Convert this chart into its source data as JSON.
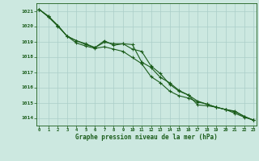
{
  "title": "Graphe pression niveau de la mer (hPa)",
  "xlabel_hours": [
    0,
    1,
    2,
    3,
    4,
    5,
    6,
    7,
    8,
    9,
    10,
    11,
    12,
    13,
    14,
    15,
    16,
    17,
    18,
    19,
    20,
    21,
    22,
    23
  ],
  "ylim": [
    1013.5,
    1021.5
  ],
  "yticks": [
    1014,
    1015,
    1016,
    1017,
    1018,
    1019,
    1020,
    1021
  ],
  "bg_color": "#cce8e0",
  "grid_color": "#aacec8",
  "line_color": "#1a5c1a",
  "line1": [
    1021.1,
    1020.65,
    1020.05,
    1019.35,
    1019.05,
    1018.8,
    1018.6,
    1018.95,
    1018.85,
    1018.85,
    1018.8,
    1017.65,
    1017.3,
    1016.65,
    1016.3,
    1015.8,
    1015.5,
    1014.85,
    1014.8,
    1014.7,
    1014.55,
    1014.3,
    1014.05,
    1013.85
  ],
  "line2": [
    1021.1,
    1020.65,
    1020.05,
    1019.35,
    1019.05,
    1018.85,
    1018.6,
    1019.05,
    1018.75,
    1018.85,
    1018.5,
    1018.35,
    1017.4,
    1016.9,
    1016.2,
    1015.75,
    1015.5,
    1015.1,
    1014.9,
    1014.7,
    1014.55,
    1014.45,
    1014.1,
    1013.85
  ],
  "line3": [
    1021.1,
    1020.6,
    1020.0,
    1019.35,
    1018.9,
    1018.7,
    1018.55,
    1018.65,
    1018.5,
    1018.35,
    1017.95,
    1017.55,
    1016.7,
    1016.3,
    1015.75,
    1015.45,
    1015.3,
    1015.05,
    1014.9,
    1014.7,
    1014.55,
    1014.4,
    1014.1,
    1013.85
  ],
  "marker": "+",
  "markersize": 3.5,
  "linewidth": 0.8
}
